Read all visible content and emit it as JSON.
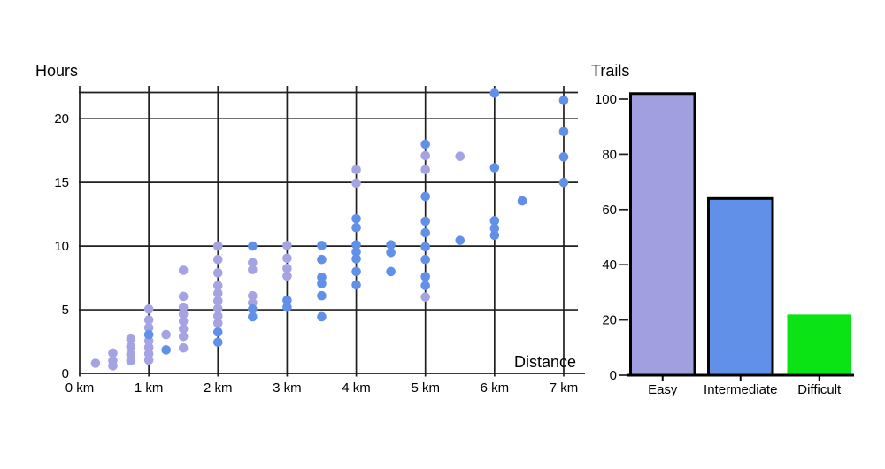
{
  "page": {
    "background": "#ffffff",
    "text_color": "#000000",
    "grid_color": "#1f1f1f"
  },
  "chart_data": [
    {
      "type": "scatter",
      "ylabel": "Hours",
      "xlabel": "Distance",
      "xlim": [
        0,
        7
      ],
      "ylim": [
        0,
        22.1
      ],
      "grid": true,
      "x_tick_labels": [
        "0 km",
        "1 km",
        "2 km",
        "3 km",
        "4 km",
        "5 km",
        "6 km",
        "7 km"
      ],
      "x_tick_values": [
        0,
        1,
        2,
        3,
        4,
        5,
        6,
        7
      ],
      "y_tick_values": [
        0,
        5,
        10,
        15,
        20
      ],
      "point_radius": 5.3,
      "series": [
        {
          "name": "Easy",
          "color": "#a6a3e3",
          "points": [
            [
              0.23,
              0.8
            ],
            [
              0.48,
              1.6
            ],
            [
              0.48,
              1.0
            ],
            [
              0.48,
              0.6
            ],
            [
              0.74,
              2.7
            ],
            [
              0.74,
              2.1
            ],
            [
              0.74,
              1.5
            ],
            [
              0.74,
              1.0
            ],
            [
              1,
              5.05
            ],
            [
              1,
              4.2
            ],
            [
              1,
              3.6
            ],
            [
              1,
              2.55
            ],
            [
              1,
              2.05
            ],
            [
              1,
              1.55
            ],
            [
              1,
              1.05
            ],
            [
              1.25,
              3.05
            ],
            [
              1.5,
              8.1
            ],
            [
              1.5,
              6.05
            ],
            [
              1.5,
              5.2
            ],
            [
              1.5,
              4.65
            ],
            [
              1.5,
              4.1
            ],
            [
              1.5,
              3.5
            ],
            [
              1.5,
              2.9
            ],
            [
              1.5,
              2.0
            ],
            [
              2,
              10.0
            ],
            [
              2,
              8.95
            ],
            [
              2,
              7.9
            ],
            [
              2,
              6.9
            ],
            [
              2,
              6.3
            ],
            [
              2,
              5.7
            ],
            [
              2,
              5.1
            ],
            [
              2,
              4.5
            ],
            [
              2,
              3.95
            ],
            [
              2.5,
              8.7
            ],
            [
              2.5,
              8.15
            ],
            [
              2.5,
              6.1
            ],
            [
              2.5,
              5.55
            ],
            [
              3,
              10.05
            ],
            [
              3,
              9.05
            ],
            [
              3,
              8.25
            ],
            [
              3,
              7.65
            ],
            [
              4,
              16.0
            ],
            [
              4,
              14.95
            ],
            [
              5,
              17.1
            ],
            [
              5,
              16.0
            ],
            [
              5,
              6.0
            ],
            [
              5.5,
              17.05
            ]
          ]
        },
        {
          "name": "Intermediate",
          "color": "#6190e8",
          "points": [
            [
              1,
              3.05
            ],
            [
              1.25,
              1.85
            ],
            [
              2,
              3.25
            ],
            [
              2,
              2.45
            ],
            [
              2.5,
              10.0
            ],
            [
              2.5,
              5.05
            ],
            [
              2.5,
              4.45
            ],
            [
              3,
              5.75
            ],
            [
              3,
              5.2
            ],
            [
              3.5,
              10.05
            ],
            [
              3.5,
              8.95
            ],
            [
              3.5,
              7.55
            ],
            [
              3.5,
              7.05
            ],
            [
              3.5,
              6.1
            ],
            [
              3.5,
              4.45
            ],
            [
              4,
              12.15
            ],
            [
              4,
              11.45
            ],
            [
              4,
              10.1
            ],
            [
              4,
              9.55
            ],
            [
              4,
              9.0
            ],
            [
              4,
              8.0
            ],
            [
              4,
              6.95
            ],
            [
              4.5,
              10.1
            ],
            [
              4.5,
              9.5
            ],
            [
              4.5,
              8.0
            ],
            [
              5,
              18.0
            ],
            [
              5,
              13.9
            ],
            [
              5,
              11.95
            ],
            [
              5,
              11.05
            ],
            [
              5,
              9.95
            ],
            [
              5,
              8.95
            ],
            [
              5,
              7.6
            ],
            [
              5,
              6.9
            ],
            [
              5.5,
              10.45
            ],
            [
              6,
              22.0
            ],
            [
              6,
              16.15
            ],
            [
              6,
              12.0
            ],
            [
              6,
              11.4
            ],
            [
              6,
              10.85
            ],
            [
              6.4,
              13.55
            ],
            [
              7,
              21.45
            ],
            [
              7,
              19.0
            ],
            [
              7,
              17.0
            ],
            [
              7,
              15.0
            ]
          ]
        }
      ]
    },
    {
      "type": "bar",
      "title": "Trails",
      "categories": [
        "Easy",
        "Intermediate",
        "Difficult"
      ],
      "values": [
        102,
        64,
        22
      ],
      "bar_colors": [
        "#a19fdf",
        "#6190e8",
        "#0ae414"
      ],
      "bar_strokes": [
        "#000000",
        "#000000",
        "none"
      ],
      "y_tick_values": [
        0,
        20,
        40,
        60,
        80,
        100
      ],
      "ylim": [
        0,
        102.5
      ],
      "grid": false,
      "legend": "none"
    }
  ]
}
